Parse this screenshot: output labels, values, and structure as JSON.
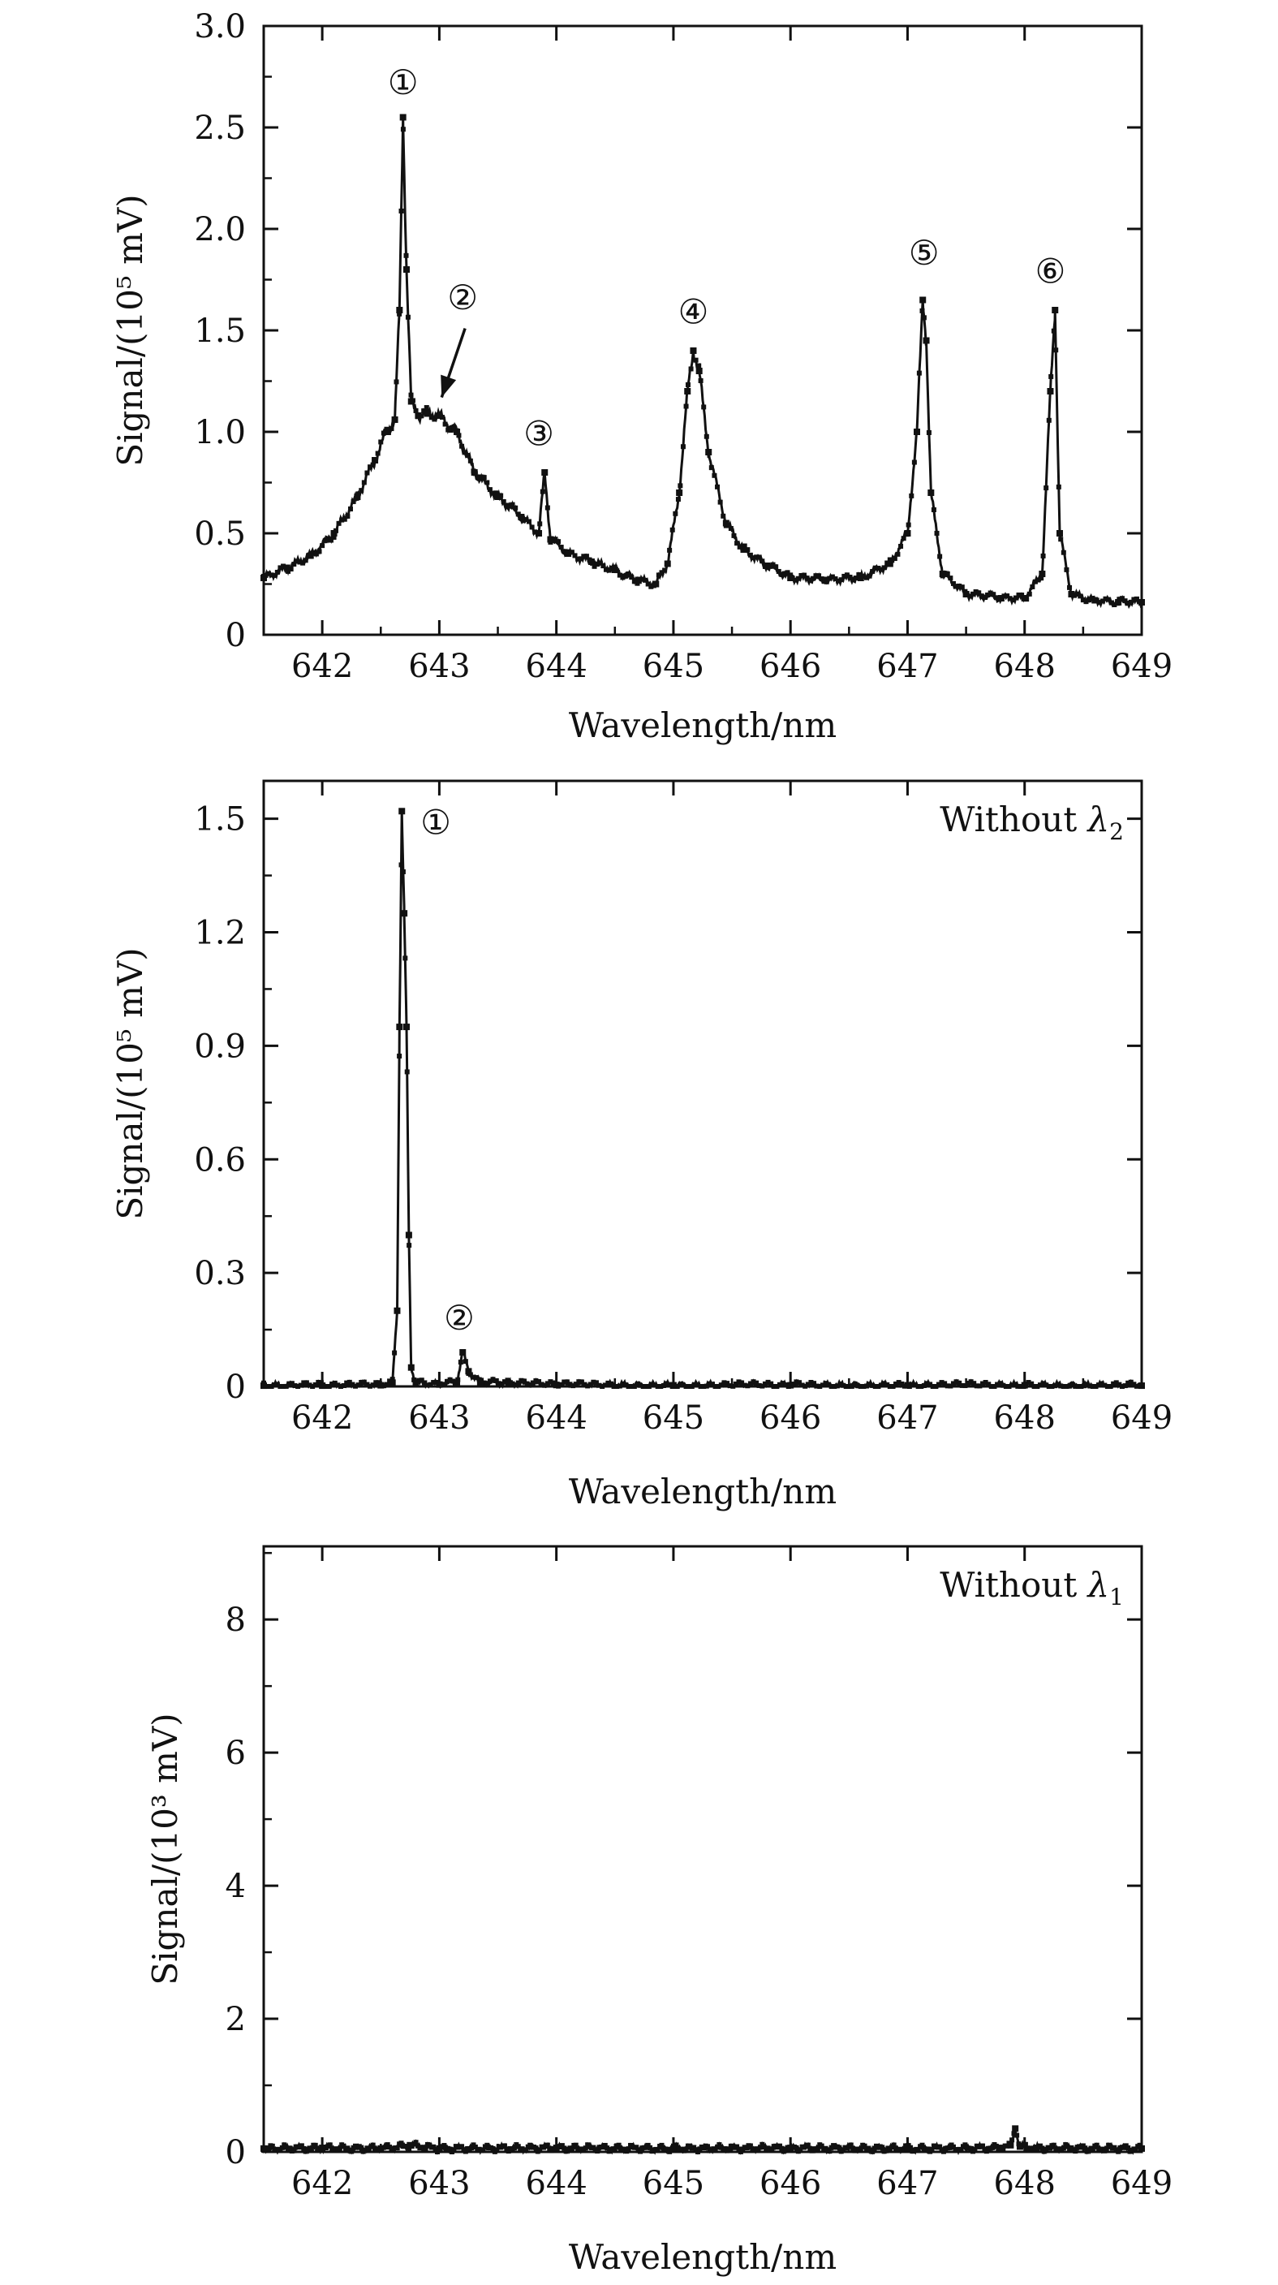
{
  "chart_data": [
    {
      "type": "line",
      "xlabel": "Wavelength/nm",
      "ylabel": "Signal/(10⁵ mV)",
      "xlim": [
        641.5,
        649
      ],
      "ylim": [
        0,
        3.0
      ],
      "xticks": [
        "642",
        "643",
        "644",
        "645",
        "646",
        "647",
        "648",
        "649"
      ],
      "yticks": [
        "0",
        "0.5",
        "1.0",
        "1.5",
        "2.0",
        "2.5",
        "3.0"
      ],
      "grid": false,
      "series": [
        {
          "x": [
            641.5,
            641.7,
            641.9,
            642.1,
            642.3,
            642.45,
            642.55,
            642.62,
            642.66,
            642.69,
            642.72,
            642.76,
            642.82,
            642.9,
            643.0,
            643.15,
            643.3,
            643.5,
            643.7,
            643.85,
            643.9,
            643.95,
            644.1,
            644.3,
            644.5,
            644.7,
            644.85,
            644.95,
            645.05,
            645.12,
            645.17,
            645.22,
            645.3,
            645.45,
            645.6,
            645.8,
            646.0,
            646.3,
            646.6,
            646.85,
            647.0,
            647.08,
            647.13,
            647.16,
            647.2,
            647.3,
            647.5,
            647.8,
            648.0,
            648.15,
            648.22,
            648.26,
            648.3,
            648.4,
            648.6,
            648.8,
            649.0
          ],
          "y": [
            0.28,
            0.33,
            0.39,
            0.5,
            0.68,
            0.86,
            1.0,
            1.06,
            1.6,
            2.55,
            1.8,
            1.15,
            1.08,
            1.09,
            1.08,
            1.0,
            0.8,
            0.68,
            0.58,
            0.5,
            0.8,
            0.47,
            0.4,
            0.36,
            0.32,
            0.27,
            0.25,
            0.35,
            0.7,
            1.2,
            1.4,
            1.3,
            0.9,
            0.55,
            0.42,
            0.34,
            0.28,
            0.27,
            0.28,
            0.35,
            0.5,
            1.0,
            1.65,
            1.45,
            0.7,
            0.3,
            0.2,
            0.18,
            0.18,
            0.3,
            1.2,
            1.6,
            0.5,
            0.2,
            0.17,
            0.16,
            0.16
          ]
        }
      ],
      "annotations": [
        {
          "label": "①",
          "x": 642.69,
          "y": 2.72
        },
        {
          "label": "②",
          "x": 643.2,
          "y": 1.66
        },
        {
          "label": "③",
          "x": 643.85,
          "y": 0.99
        },
        {
          "label": "④",
          "x": 645.17,
          "y": 1.59
        },
        {
          "label": "⑤",
          "x": 647.14,
          "y": 1.88
        },
        {
          "label": "⑥",
          "x": 648.22,
          "y": 1.79
        }
      ],
      "arrow": {
        "from": [
          643.22,
          1.51
        ],
        "to": [
          643.02,
          1.17
        ]
      },
      "base_label": ""
    },
    {
      "type": "line",
      "xlabel": "Wavelength/nm",
      "ylabel": "Signal/(10⁵ mV)",
      "xlim": [
        641.5,
        649
      ],
      "ylim": [
        0,
        1.6
      ],
      "xticks": [
        "642",
        "643",
        "644",
        "645",
        "646",
        "647",
        "648",
        "649"
      ],
      "yticks": [
        "0",
        "0.3",
        "0.6",
        "0.9",
        "1.2",
        "1.5"
      ],
      "grid": false,
      "series": [
        {
          "x": [
            641.5,
            642.0,
            642.5,
            642.6,
            642.64,
            642.66,
            642.68,
            642.7,
            642.72,
            642.74,
            642.76,
            642.8,
            643.0,
            643.15,
            643.2,
            643.25,
            643.35,
            643.6,
            644.0,
            645.0,
            646.0,
            647.0,
            648.0,
            649.0
          ],
          "y": [
            0.002,
            0.002,
            0.003,
            0.01,
            0.2,
            0.95,
            1.52,
            1.25,
            0.95,
            0.4,
            0.05,
            0.01,
            0.005,
            0.01,
            0.09,
            0.04,
            0.01,
            0.008,
            0.004,
            0.003,
            0.003,
            0.003,
            0.003,
            0.002
          ]
        }
      ],
      "annotations": [
        {
          "label": "①",
          "x": 642.97,
          "y": 1.49
        },
        {
          "label": "②",
          "x": 643.17,
          "y": 0.18
        }
      ],
      "legend_text": {
        "prefix": "Without ",
        "symbol": "λ",
        "sub": "2"
      }
    },
    {
      "type": "line",
      "xlabel": "Wavelength/nm",
      "ylabel": "Signal/(10³ mV)",
      "xlim": [
        641.5,
        649
      ],
      "ylim": [
        0,
        9.1
      ],
      "xticks": [
        "642",
        "643",
        "644",
        "645",
        "646",
        "647",
        "648",
        "649"
      ],
      "yticks": [
        "0",
        "2",
        "4",
        "6",
        "8"
      ],
      "grid": false,
      "series": [
        {
          "x": [
            641.5,
            642.0,
            642.5,
            642.75,
            643.0,
            644.0,
            645.0,
            646.0,
            647.0,
            647.8,
            647.88,
            647.92,
            647.96,
            648.1,
            649.0
          ],
          "y": [
            0.05,
            0.06,
            0.05,
            0.1,
            0.05,
            0.06,
            0.05,
            0.06,
            0.05,
            0.06,
            0.1,
            0.35,
            0.08,
            0.06,
            0.05
          ]
        }
      ],
      "annotations": [],
      "legend_text": {
        "prefix": "Without ",
        "symbol": "λ",
        "sub": "1"
      }
    }
  ]
}
